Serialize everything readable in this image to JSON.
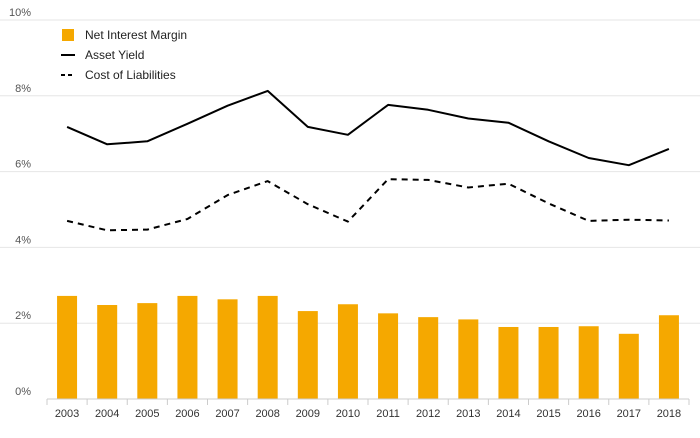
{
  "chart_data": {
    "type": "bar",
    "title": "",
    "xlabel": "",
    "ylabel": "",
    "categories": [
      "2003",
      "2004",
      "2005",
      "2006",
      "2007",
      "2008",
      "2009",
      "2010",
      "2011",
      "2012",
      "2013",
      "2014",
      "2015",
      "2016",
      "2017",
      "2018"
    ],
    "ylim": [
      0,
      10
    ],
    "yticks": [
      0,
      2,
      4,
      6,
      8,
      10
    ],
    "ytick_labels": [
      "0%",
      "2%",
      "4%",
      "6%",
      "8%",
      "10%"
    ],
    "grid": "horizontal",
    "legend_position": "top-left",
    "series": [
      {
        "name": "Net Interest Margin",
        "kind": "bar",
        "color": "#F5A800",
        "values": [
          2.72,
          2.48,
          2.53,
          2.72,
          2.63,
          2.72,
          2.32,
          2.5,
          2.26,
          2.16,
          2.1,
          1.9,
          1.9,
          1.92,
          1.72,
          2.21
        ]
      },
      {
        "name": "Asset Yield",
        "kind": "line",
        "dash": "solid",
        "color": "#000000",
        "values": [
          7.18,
          6.72,
          6.8,
          7.26,
          7.74,
          8.13,
          7.18,
          6.97,
          7.76,
          7.63,
          7.4,
          7.29,
          6.8,
          6.36,
          6.17,
          6.6
        ]
      },
      {
        "name": "Cost of Liabilities",
        "kind": "line",
        "dash": "dashed",
        "color": "#000000",
        "values": [
          4.7,
          4.45,
          4.47,
          4.75,
          5.38,
          5.75,
          5.14,
          4.68,
          5.8,
          5.78,
          5.58,
          5.68,
          5.16,
          4.7,
          4.73,
          4.71
        ]
      }
    ]
  }
}
